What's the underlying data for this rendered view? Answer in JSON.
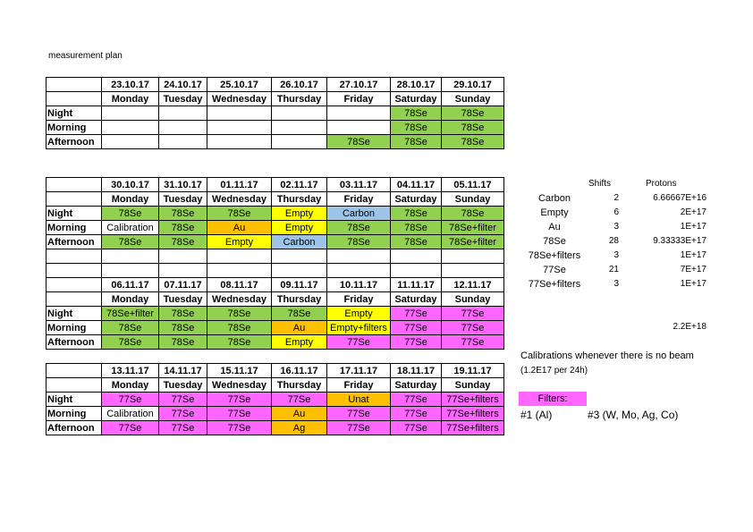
{
  "title": "measurement plan",
  "colors": {
    "green": "#92d050",
    "yellow": "#ffff00",
    "orange": "#ffc000",
    "blue": "#9dc3e6",
    "pink": "#ff66ff"
  },
  "rows": [
    "Night",
    "Morning",
    "Afternoon"
  ],
  "tables": [
    {
      "blocks": [
        {
          "dates": [
            "23.10.17",
            "24.10.17",
            "25.10.17",
            "26.10.17",
            "27.10.17",
            "28.10.17",
            "29.10.17"
          ],
          "days": [
            "Monday",
            "Tuesday",
            "Wednesday",
            "Thursday",
            "Friday",
            "Saturday",
            "Sunday"
          ],
          "cells": [
            [
              [
                "",
                "white"
              ],
              [
                "",
                "white"
              ],
              [
                "",
                "white"
              ],
              [
                "",
                "white"
              ],
              [
                "",
                "white"
              ],
              [
                "78Se",
                "green"
              ],
              [
                "78Se",
                "green"
              ]
            ],
            [
              [
                "",
                "white"
              ],
              [
                "",
                "white"
              ],
              [
                "",
                "white"
              ],
              [
                "",
                "white"
              ],
              [
                "",
                "white"
              ],
              [
                "78Se",
                "green"
              ],
              [
                "78Se",
                "green"
              ]
            ],
            [
              [
                "",
                "white"
              ],
              [
                "",
                "white"
              ],
              [
                "",
                "white"
              ],
              [
                "",
                "white"
              ],
              [
                "78Se",
                "green"
              ],
              [
                "78Se",
                "green"
              ],
              [
                "78Se",
                "green"
              ]
            ]
          ]
        }
      ]
    },
    {
      "blocks": [
        {
          "dates": [
            "30.10.17",
            "31.10.17",
            "01.11.17",
            "02.11.17",
            "03.11.17",
            "04.11.17",
            "05.11.17"
          ],
          "days": [
            "Monday",
            "Tuesday",
            "Wednesday",
            "Thursday",
            "Friday",
            "Saturday",
            "Sunday"
          ],
          "cells": [
            [
              [
                "78Se",
                "green"
              ],
              [
                "78Se",
                "green"
              ],
              [
                "78Se",
                "green"
              ],
              [
                "Empty",
                "yellow"
              ],
              [
                "Carbon",
                "blue"
              ],
              [
                "78Se",
                "green"
              ],
              [
                "78Se",
                "green"
              ]
            ],
            [
              [
                "Calibration",
                "white"
              ],
              [
                "78Se",
                "green"
              ],
              [
                "Au",
                "orange"
              ],
              [
                "Empty",
                "yellow"
              ],
              [
                "78Se",
                "green"
              ],
              [
                "78Se",
                "green"
              ],
              [
                "78Se+filter",
                "green"
              ]
            ],
            [
              [
                "78Se",
                "green"
              ],
              [
                "78Se",
                "green"
              ],
              [
                "Empty",
                "yellow"
              ],
              [
                "Carbon",
                "blue"
              ],
              [
                "78Se",
                "green"
              ],
              [
                "78Se",
                "green"
              ],
              [
                "78Se+filter",
                "green"
              ]
            ]
          ]
        },
        {
          "dates": [
            "06.11.17",
            "07.11.17",
            "08.11.17",
            "09.11.17",
            "10.11.17",
            "11.11.17",
            "12.11.17"
          ],
          "days": [
            "Monday",
            "Tuesday",
            "Wednesday",
            "Thursday",
            "Friday",
            "Saturday",
            "Sunday"
          ],
          "cells": [
            [
              [
                "78Se+filter",
                "green"
              ],
              [
                "78Se",
                "green"
              ],
              [
                "78Se",
                "green"
              ],
              [
                "78Se",
                "green"
              ],
              [
                "Empty",
                "yellow"
              ],
              [
                "77Se",
                "pink"
              ],
              [
                "77Se",
                "pink"
              ]
            ],
            [
              [
                "78Se",
                "green"
              ],
              [
                "78Se",
                "green"
              ],
              [
                "78Se",
                "green"
              ],
              [
                "Au",
                "orange"
              ],
              [
                "Empty+filters",
                "yellow"
              ],
              [
                "77Se",
                "pink"
              ],
              [
                "77Se",
                "pink"
              ]
            ],
            [
              [
                "78Se",
                "green"
              ],
              [
                "78Se",
                "green"
              ],
              [
                "78Se",
                "green"
              ],
              [
                "Empty",
                "yellow"
              ],
              [
                "77Se",
                "pink"
              ],
              [
                "77Se",
                "pink"
              ],
              [
                "77Se",
                "pink"
              ]
            ]
          ]
        }
      ]
    },
    {
      "blocks": [
        {
          "dates": [
            "13.11.17",
            "14.11.17",
            "15.11.17",
            "16.11.17",
            "17.11.17",
            "18.11.17",
            "19.11.17"
          ],
          "days": [
            "Monday",
            "Tuesday",
            "Wednesday",
            "Thursday",
            "Friday",
            "Saturday",
            "Sunday"
          ],
          "cells": [
            [
              [
                "77Se",
                "pink"
              ],
              [
                "77Se",
                "pink"
              ],
              [
                "77Se",
                "pink"
              ],
              [
                "77Se",
                "pink"
              ],
              [
                "Unat",
                "orange"
              ],
              [
                "77Se",
                "pink"
              ],
              [
                "77Se+filters",
                "pink"
              ]
            ],
            [
              [
                "Calibration",
                "white"
              ],
              [
                "77Se",
                "pink"
              ],
              [
                "77Se",
                "pink"
              ],
              [
                "Au",
                "orange"
              ],
              [
                "77Se",
                "pink"
              ],
              [
                "77Se",
                "pink"
              ],
              [
                "77Se+filters",
                "pink"
              ]
            ],
            [
              [
                "77Se",
                "pink"
              ],
              [
                "77Se",
                "pink"
              ],
              [
                "77Se",
                "pink"
              ],
              [
                "Ag",
                "orange"
              ],
              [
                "77Se",
                "pink"
              ],
              [
                "77Se",
                "pink"
              ],
              [
                "77Se+filters",
                "pink"
              ]
            ]
          ]
        }
      ]
    }
  ],
  "summary": {
    "headers": {
      "shifts": "Shifts",
      "protons": "Protons"
    },
    "rows": [
      {
        "name": "Carbon",
        "shifts": "2",
        "protons": "6.66667E+16"
      },
      {
        "name": "Empty",
        "shifts": "6",
        "protons": "2E+17"
      },
      {
        "name": "Au",
        "shifts": "3",
        "protons": "1E+17"
      },
      {
        "name": "78Se",
        "shifts": "28",
        "protons": "9.33333E+17"
      },
      {
        "name": "78Se+filters",
        "shifts": "3",
        "protons": "1E+17"
      },
      {
        "name": "77Se",
        "shifts": "21",
        "protons": "7E+17"
      },
      {
        "name": "77Se+filters",
        "shifts": "3",
        "protons": "1E+17"
      }
    ],
    "total": "2.2E+18"
  },
  "notes": {
    "calibrations": "Calibrations whenever there is no beam",
    "calibrations_detail": "(1.2E17 per 24h)",
    "filters_label": "Filters:",
    "filter1": "#1 (Al)",
    "filter3": "#3 (W, Mo, Ag, Co)"
  }
}
